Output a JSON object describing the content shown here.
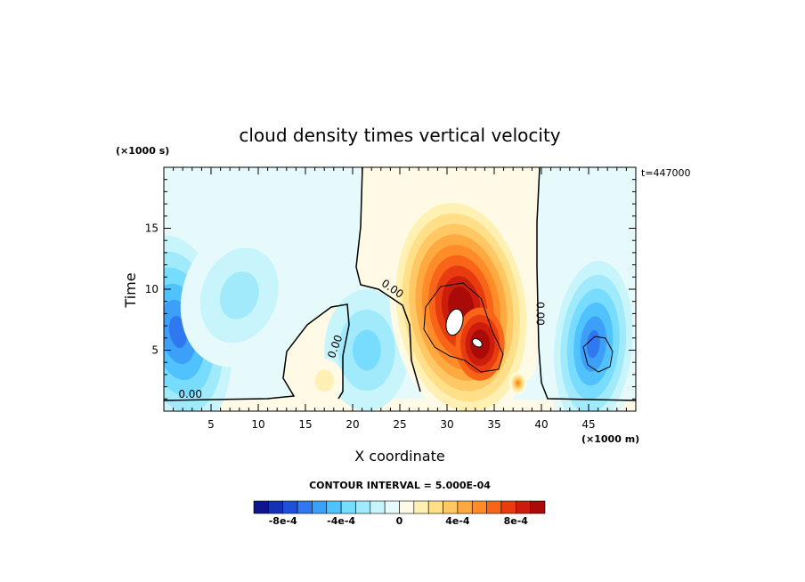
{
  "chart_data": {
    "type": "heatmap",
    "title": "cloud density times vertical velocity",
    "xlabel": "X coordinate",
    "ylabel": "Time",
    "x_unit": "(×1000 m)",
    "y_unit": "(×1000 s)",
    "time_stamp": "t=447000",
    "xlim": [
      0,
      50
    ],
    "ylim": [
      0,
      20
    ],
    "x_ticks": [
      5,
      10,
      15,
      20,
      25,
      30,
      35,
      40,
      45
    ],
    "y_ticks": [
      5,
      10,
      15
    ],
    "contour_interval_label": "CONTOUR INTERVAL = 5.000E-04",
    "contour_labels": [
      {
        "text": "0.00",
        "x": 2.8,
        "y": 1.1,
        "angle": 0
      },
      {
        "text": "0.00",
        "x": 18.5,
        "y": 5.2,
        "angle": -70
      },
      {
        "text": "0.00",
        "x": 24.0,
        "y": 9.8,
        "angle": 35
      },
      {
        "text": "0.00",
        "x": 39.5,
        "y": 8.0,
        "angle": 90
      }
    ],
    "colorbar": {
      "levels": [
        -0.001,
        -0.0009,
        -0.0008,
        -0.0007,
        -0.0006,
        -0.0005,
        -0.0004,
        -0.0003,
        -0.0002,
        -0.0001,
        0,
        0.0001,
        0.0002,
        0.0003,
        0.0004,
        0.0005,
        0.0006,
        0.0007,
        0.0008,
        0.0009,
        0.001
      ],
      "colors": [
        "#10148c",
        "#1432b4",
        "#1e50dc",
        "#2f78f0",
        "#3ca0f8",
        "#50c3ff",
        "#78dcff",
        "#a0eafc",
        "#c8f5fc",
        "#e6fafc",
        "#fffae6",
        "#fff0b4",
        "#ffe088",
        "#ffc864",
        "#ffaa40",
        "#ff8c28",
        "#f86418",
        "#e83c10",
        "#cc1c0c",
        "#aa0a08"
      ],
      "tick_labels": [
        "-8e-4",
        "-4e-4",
        "0",
        "4e-4",
        "8e-4"
      ],
      "tick_values": [
        -0.0008,
        -0.0004,
        0,
        0.0004,
        0.0008
      ]
    },
    "field_features": [
      {
        "kind": "updraft core",
        "x": 31,
        "y": 7.2,
        "peak": 0.0011
      },
      {
        "kind": "updraft",
        "x": 33.5,
        "y": 5.5,
        "peak": 0.0009
      },
      {
        "kind": "downdraft",
        "x": 45.5,
        "y": 4.2,
        "peak": -0.0006
      },
      {
        "kind": "downdraft",
        "x": 1.5,
        "y": 6.5,
        "peak": -0.0006
      },
      {
        "kind": "weak downdraft",
        "x": 21,
        "y": 5.5,
        "peak": -0.0003
      }
    ]
  }
}
